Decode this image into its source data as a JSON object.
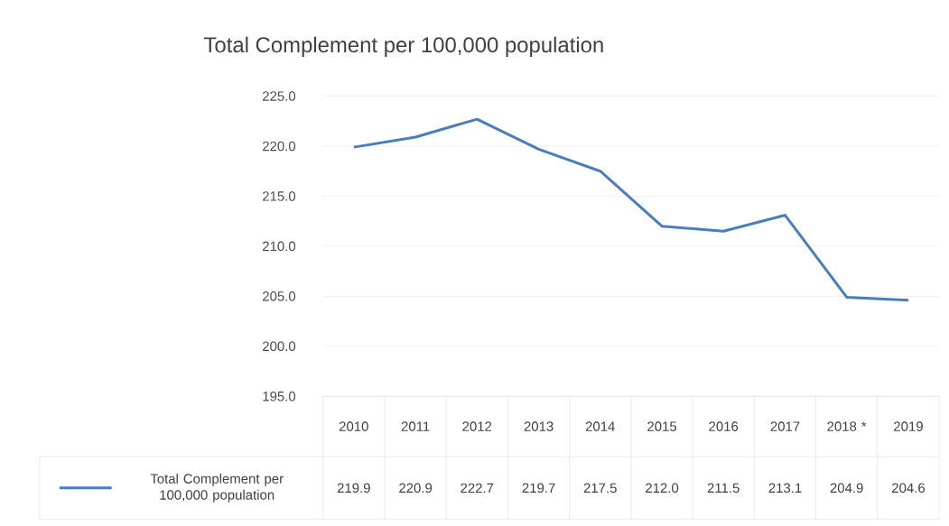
{
  "chart_data": {
    "type": "line",
    "title": "Total Complement per 100,000 population",
    "categories": [
      "2010",
      "2011",
      "2012",
      "2013",
      "2014",
      "2015",
      "2016",
      "2017",
      "2018 *",
      "2019"
    ],
    "series": [
      {
        "name": "Total Complement per 100,000 population",
        "color": "#4a7ebb",
        "values": [
          219.9,
          220.9,
          222.7,
          219.7,
          217.5,
          212.0,
          211.5,
          213.1,
          204.9,
          204.6
        ],
        "value_labels": [
          "219.9",
          "220.9",
          "222.7",
          "219.7",
          "217.5",
          "212.0",
          "211.5",
          "213.1",
          "204.9",
          "204.6"
        ]
      }
    ],
    "ylim": [
      195,
      225
    ],
    "yticks": [
      {
        "value": 195,
        "label": "195.0"
      },
      {
        "value": 200,
        "label": "200.0"
      },
      {
        "value": 205,
        "label": "205.0"
      },
      {
        "value": 210,
        "label": "210.0"
      },
      {
        "value": 215,
        "label": "215.0"
      },
      {
        "value": 220,
        "label": "220.0"
      },
      {
        "value": 225,
        "label": "225.0"
      }
    ],
    "grid": "y",
    "legend": "bottom"
  }
}
